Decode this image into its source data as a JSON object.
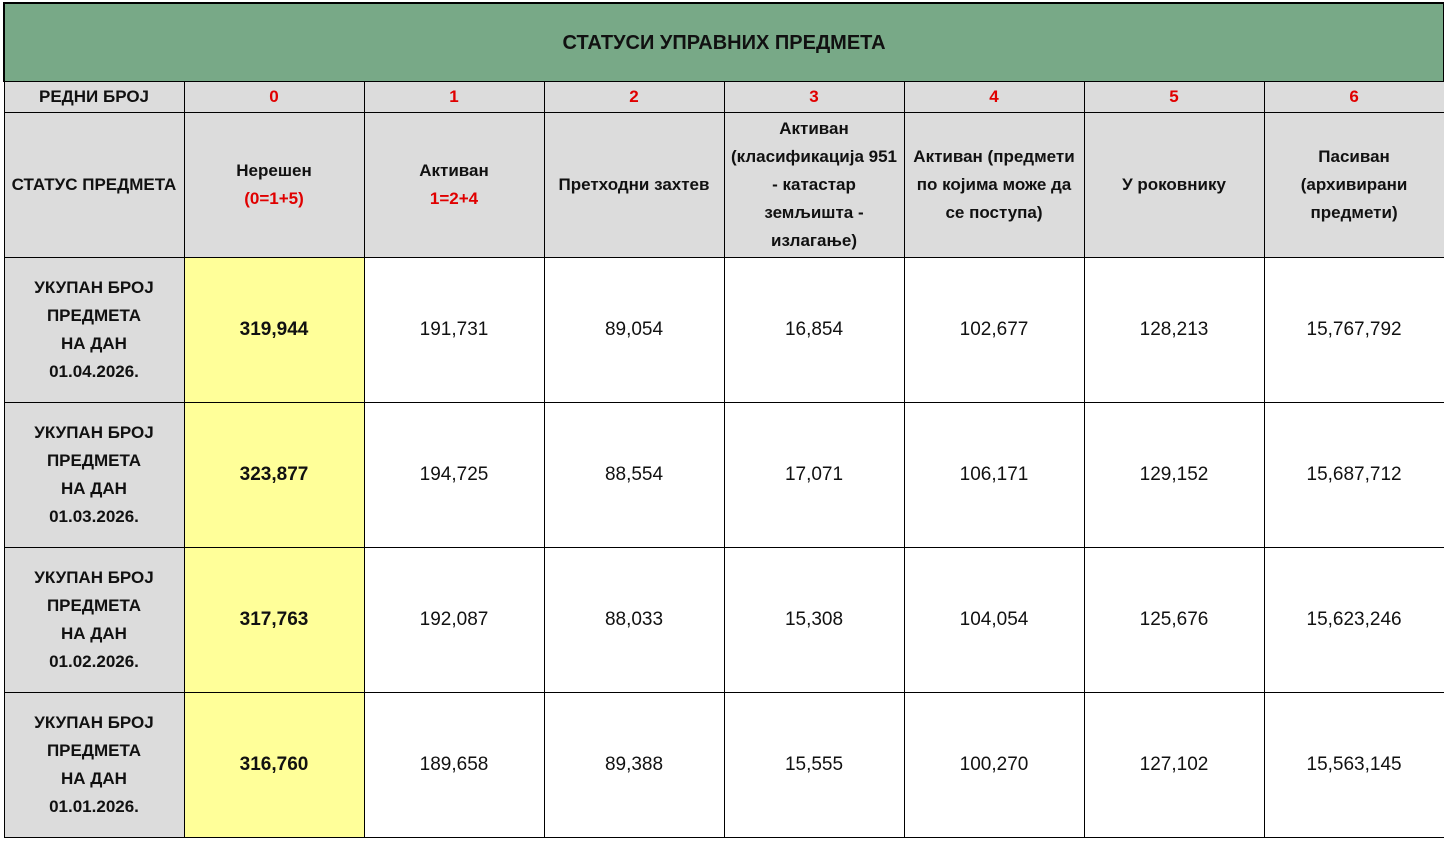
{
  "title": "СТАТУСИ УПРАВНИХ ПРЕДМЕТА",
  "colors": {
    "title_bg": "#78a987",
    "header_bg": "#dcdcdc",
    "highlight": "#ffff99",
    "accent_red": "#e00000"
  },
  "number_row": {
    "label": "РЕДНИ БРОЈ",
    "numbers": [
      "0",
      "1",
      "2",
      "3",
      "4",
      "5",
      "6"
    ]
  },
  "header_row": {
    "label": "СТАТУС ПРЕДМЕТА",
    "columns": [
      {
        "title": "Нерешен",
        "formula": "(0=1+5)"
      },
      {
        "title": "Активан",
        "formula": "1=2+4"
      },
      {
        "title": "Претходни захтев"
      },
      {
        "title": "Активан (класификација 951 -  катастар земљишта - излагање)"
      },
      {
        "title": "Активан (предмети по којима може да се поступа)"
      },
      {
        "title": "У роковнику"
      },
      {
        "title": "Пасиван (архивирани предмети)"
      }
    ]
  },
  "rows": [
    {
      "label": [
        "УКУПАН БРОЈ",
        "ПРЕДМЕТА",
        "НА ДАН",
        "01.04.2026."
      ],
      "values": [
        "319,944",
        "191,731",
        "89,054",
        "16,854",
        "102,677",
        "128,213",
        "15,767,792"
      ]
    },
    {
      "label": [
        "УКУПАН БРОЈ",
        "ПРЕДМЕТА",
        "НА ДАН",
        "01.03.2026."
      ],
      "values": [
        "323,877",
        "194,725",
        "88,554",
        "17,071",
        "106,171",
        "129,152",
        "15,687,712"
      ]
    },
    {
      "label": [
        "УКУПАН БРОЈ",
        "ПРЕДМЕТА",
        "НА ДАН",
        "01.02.2026."
      ],
      "values": [
        "317,763",
        "192,087",
        "88,033",
        "15,308",
        "104,054",
        "125,676",
        "15,623,246"
      ]
    },
    {
      "label": [
        "УКУПАН БРОЈ",
        "ПРЕДМЕТА",
        "НА ДАН",
        "01.01.2026."
      ],
      "values": [
        "316,760",
        "189,658",
        "89,388",
        "15,555",
        "100,270",
        "127,102",
        "15,563,145"
      ]
    }
  ]
}
